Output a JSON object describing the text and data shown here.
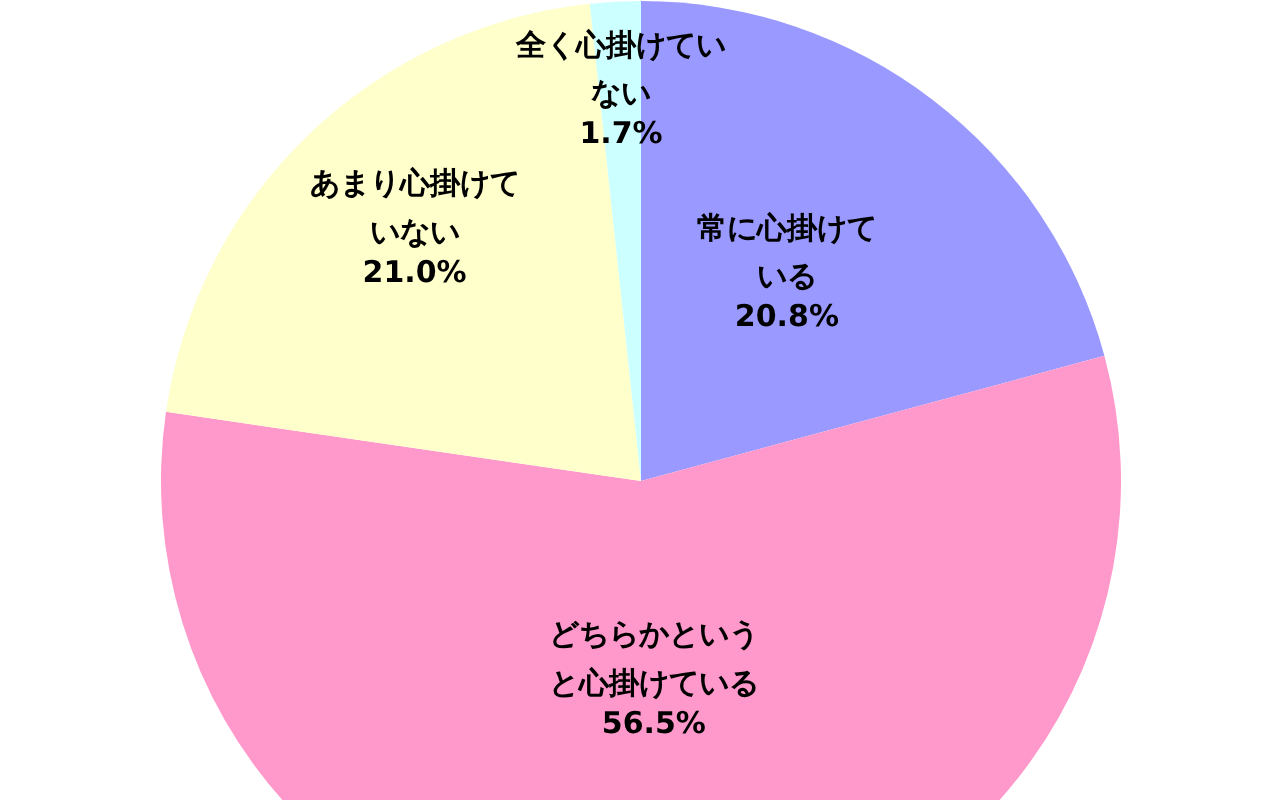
{
  "chart_data": {
    "type": "pie",
    "categories": [
      "常に心掛けている",
      "どちらかというと心掛けている",
      "あまり心掛けていない",
      "全く心掛けていない"
    ],
    "values": [
      20.8,
      56.5,
      21.0,
      1.7
    ],
    "colors": [
      "#9999ff",
      "#ff99cc",
      "#ffffcc",
      "#ccffff"
    ],
    "value_labels": [
      "20.8%",
      "56.5%",
      "21.0%",
      "1.7%"
    ],
    "legend": false
  }
}
